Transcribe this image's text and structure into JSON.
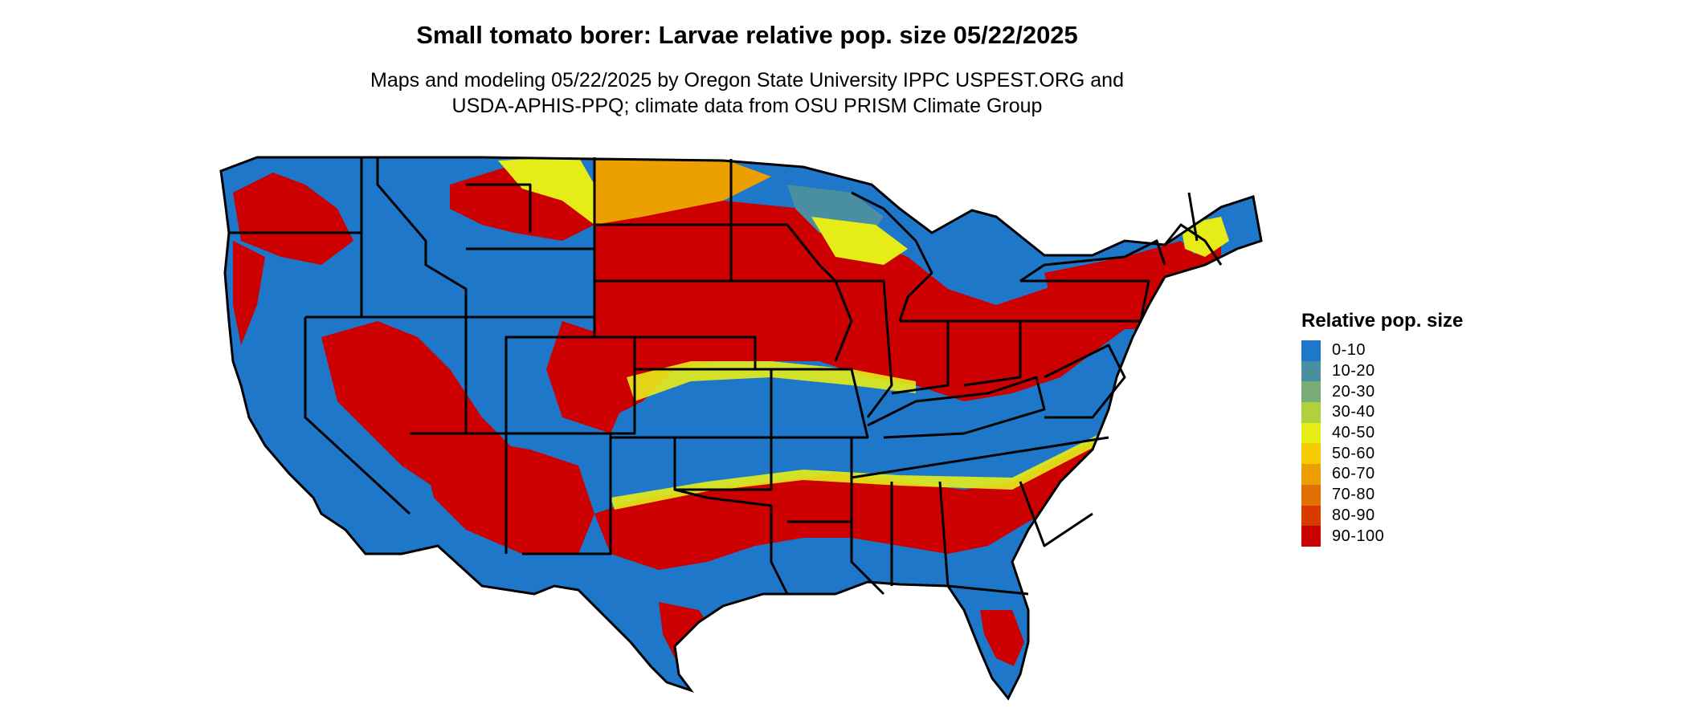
{
  "title": "Small tomato borer: Larvae relative pop. size 05/22/2025",
  "subtitle_line1": "Maps and modeling 05/22/2025 by Oregon State University IPPC USPEST.ORG and",
  "subtitle_line2": "USDA-APHIS-PPQ; climate data from OSU PRISM Climate Group",
  "legend": {
    "title": "Relative pop. size",
    "items": [
      {
        "label": "0-10",
        "color": "#1f77c9"
      },
      {
        "label": "10-20",
        "color": "#4a8fa0"
      },
      {
        "label": "20-30",
        "color": "#78ad78"
      },
      {
        "label": "30-40",
        "color": "#b0d040"
      },
      {
        "label": "40-50",
        "color": "#e6ec18"
      },
      {
        "label": "50-60",
        "color": "#f6cc00"
      },
      {
        "label": "60-70",
        "color": "#eba000"
      },
      {
        "label": "70-80",
        "color": "#e27000"
      },
      {
        "label": "80-90",
        "color": "#d83a00"
      },
      {
        "label": "90-100",
        "color": "#cc0000"
      }
    ]
  },
  "map": {
    "region": "contiguous-united-states",
    "colors": {
      "low": "#1f77c9",
      "mid": "#e6ec18",
      "orange": "#eba000",
      "high": "#cc0000",
      "teal": "#4a8fa0",
      "border": "#000000"
    }
  }
}
